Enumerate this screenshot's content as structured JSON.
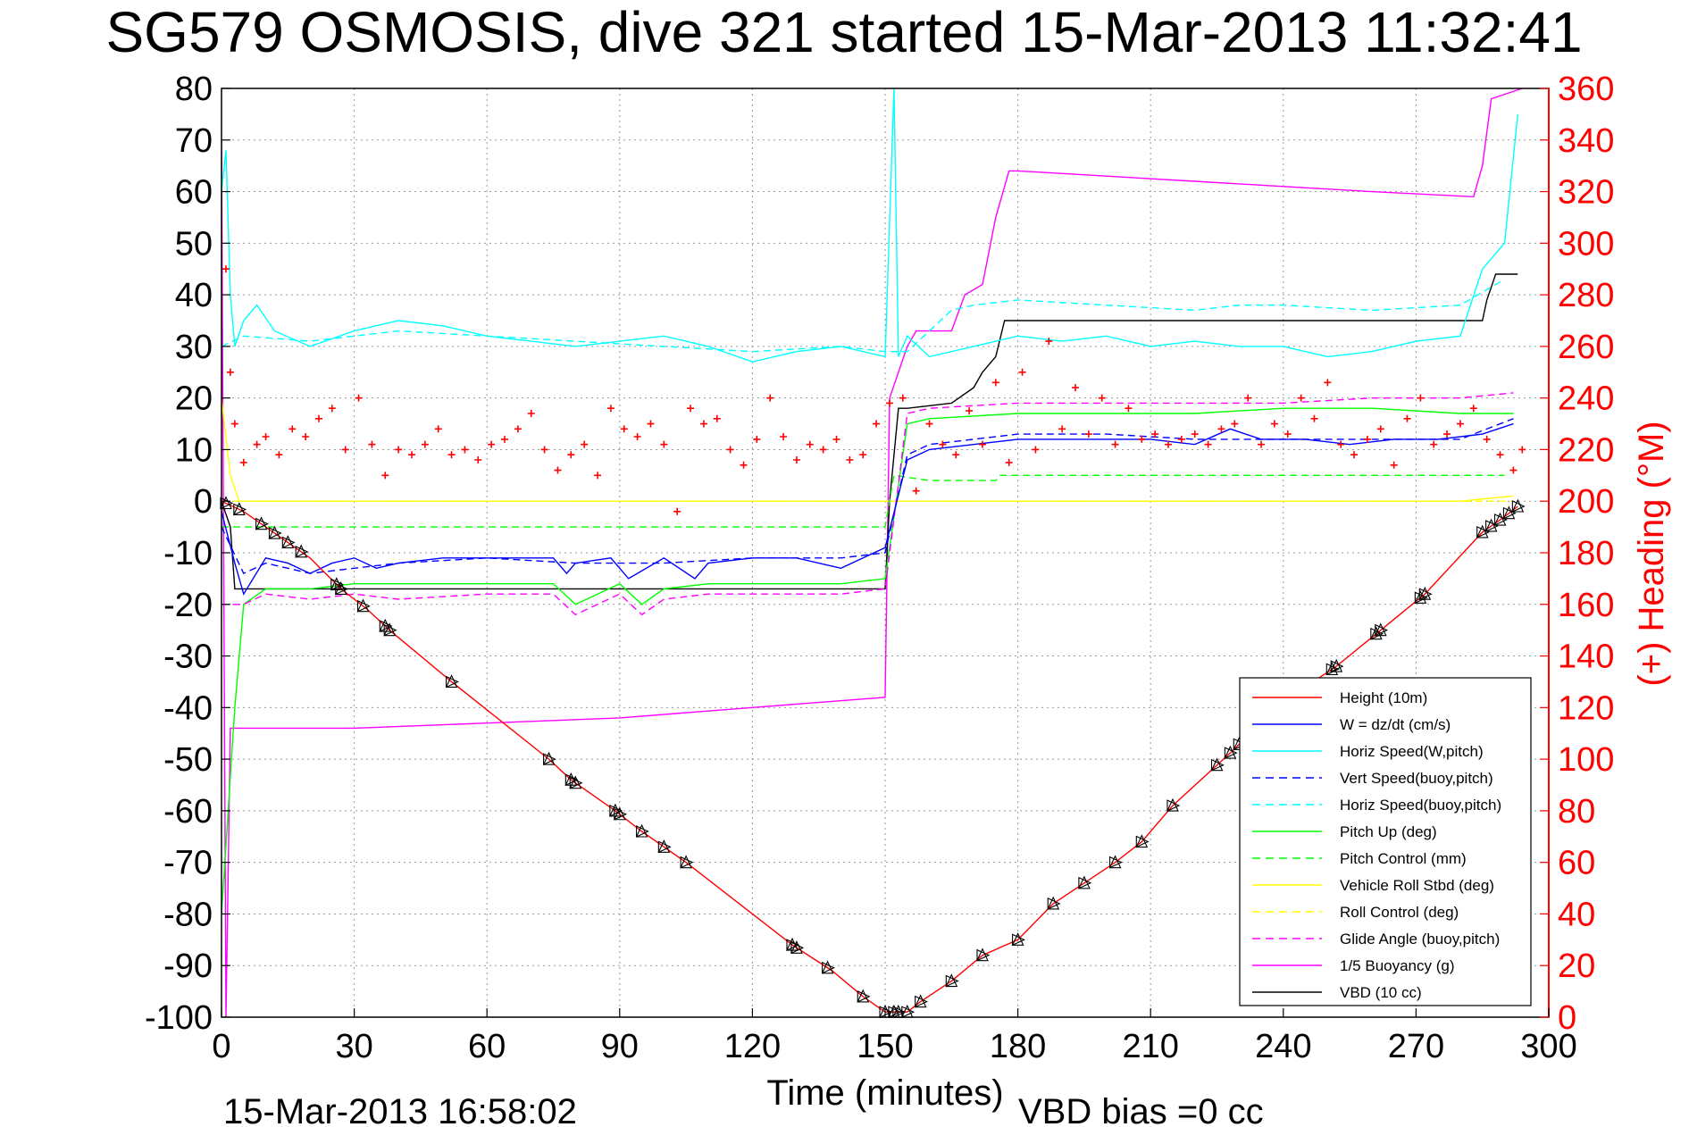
{
  "chart_data": {
    "type": "line",
    "title": "SG579 OSMOSIS, dive 321 started 15-Mar-2013 11:32:41",
    "xlabel": "Time (minutes)",
    "ylabel": "",
    "ylabel_right": "(+) Heading (°M)",
    "xlim": [
      0,
      300
    ],
    "ylim": [
      -100,
      80
    ],
    "ylim_right": [
      0,
      360
    ],
    "x_ticks": [
      "0",
      "30",
      "60",
      "90",
      "120",
      "150",
      "180",
      "210",
      "240",
      "270",
      "300"
    ],
    "y_ticks": [
      "80",
      "70",
      "60",
      "50",
      "40",
      "30",
      "20",
      "10",
      "0",
      "-10",
      "-20",
      "-30",
      "-40",
      "-50",
      "-60",
      "-70",
      "-80",
      "-90",
      "-100"
    ],
    "y_ticks_right": [
      "360",
      "340",
      "320",
      "300",
      "280",
      "260",
      "240",
      "220",
      "200",
      "180",
      "160",
      "140",
      "120",
      "100",
      "80",
      "60",
      "40",
      "20",
      "0"
    ],
    "grid": true,
    "legend_position": "bottom-right",
    "footer_left": "15-Mar-2013 16:58:02",
    "footer_right": "VBD bias =0 cc",
    "series": [
      {
        "name": "Height (10m)",
        "color": "#ff0000",
        "dash": "solid",
        "x": [
          0,
          5,
          10,
          15,
          20,
          27,
          33,
          38,
          52,
          74,
          79,
          89,
          95,
          100,
          105,
          129,
          138,
          145,
          150,
          155,
          158,
          165,
          172,
          180,
          188,
          195,
          202,
          208,
          215,
          229,
          238,
          252,
          262,
          272,
          285,
          290,
          293
        ],
        "y": [
          0,
          -2,
          -5,
          -8,
          -11,
          -17,
          -21,
          -25,
          -35,
          -50,
          -54,
          -60,
          -64,
          -67,
          -70,
          -86,
          -91,
          -96,
          -99,
          -99,
          -97,
          -93,
          -88,
          -85,
          -78,
          -74,
          -70,
          -66,
          -59,
          -48,
          -40,
          -32,
          -25,
          -18,
          -6,
          -3,
          -1
        ]
      },
      {
        "name": "W = dz/dt (cm/s)",
        "color": "#0000ff",
        "dash": "solid",
        "x": [
          0,
          3,
          5,
          10,
          15,
          20,
          25,
          30,
          35,
          40,
          50,
          60,
          75,
          78,
          80,
          88,
          92,
          100,
          107,
          110,
          120,
          130,
          140,
          150,
          155,
          160,
          170,
          180,
          190,
          200,
          210,
          220,
          228,
          235,
          245,
          255,
          265,
          275,
          285,
          292
        ],
        "y": [
          -2,
          -12,
          -18,
          -11,
          -12,
          -14,
          -12,
          -11,
          -13,
          -12,
          -11,
          -11,
          -11,
          -14,
          -12,
          -11,
          -15,
          -11,
          -15,
          -12,
          -11,
          -11,
          -13,
          -9,
          8,
          10,
          11,
          12,
          12,
          12,
          12,
          11,
          14,
          12,
          12,
          11,
          12,
          12,
          13,
          15
        ]
      },
      {
        "name": "Horiz Speed(W,pitch)",
        "color": "#00ffff",
        "dash": "solid",
        "x": [
          0,
          1,
          2,
          3,
          5,
          8,
          12,
          20,
          30,
          40,
          50,
          60,
          70,
          80,
          90,
          100,
          110,
          120,
          130,
          140,
          150,
          152,
          153,
          155,
          160,
          170,
          180,
          190,
          200,
          210,
          220,
          230,
          240,
          250,
          260,
          270,
          280,
          285,
          290,
          293
        ],
        "y": [
          60,
          68,
          40,
          30,
          35,
          38,
          33,
          30,
          33,
          35,
          34,
          32,
          31,
          30,
          31,
          32,
          30,
          27,
          29,
          30,
          28,
          80,
          28,
          32,
          28,
          30,
          32,
          31,
          32,
          30,
          31,
          30,
          30,
          28,
          29,
          31,
          32,
          45,
          50,
          75
        ]
      },
      {
        "name": "Vert Speed(buoy,pitch)",
        "color": "#0000ff",
        "dash": "dashed",
        "x": [
          0,
          5,
          10,
          20,
          30,
          40,
          60,
          80,
          100,
          120,
          140,
          150,
          155,
          160,
          180,
          200,
          220,
          240,
          260,
          280,
          292
        ],
        "y": [
          -5,
          -14,
          -12,
          -14,
          -13,
          -12,
          -11,
          -12,
          -12,
          -11,
          -11,
          -10,
          9,
          11,
          13,
          13,
          12,
          12,
          12,
          12,
          16
        ]
      },
      {
        "name": "Horiz Speed(buoy,pitch)",
        "color": "#00ffff",
        "dash": "dashed",
        "x": [
          0,
          5,
          20,
          40,
          60,
          80,
          100,
          120,
          140,
          150,
          155,
          165,
          170,
          180,
          200,
          220,
          230,
          240,
          260,
          280,
          290
        ],
        "y": [
          30,
          32,
          31,
          33,
          32,
          31,
          30,
          29,
          30,
          29,
          29,
          37,
          38,
          39,
          38,
          37,
          38,
          38,
          37,
          38,
          43
        ]
      },
      {
        "name": "Pitch Up (deg)",
        "color": "#00ff00",
        "dash": "solid",
        "x": [
          0,
          3,
          5,
          10,
          20,
          30,
          40,
          60,
          75,
          80,
          90,
          95,
          100,
          110,
          120,
          140,
          150,
          155,
          160,
          180,
          200,
          220,
          240,
          260,
          280,
          292
        ],
        "y": [
          -80,
          -40,
          -20,
          -17,
          -17,
          -16,
          -16,
          -16,
          -16,
          -20,
          -16,
          -20,
          -17,
          -16,
          -16,
          -16,
          -15,
          15,
          16,
          17,
          17,
          17,
          18,
          18,
          17,
          17
        ]
      },
      {
        "name": "Pitch Control (mm)",
        "color": "#00ff00",
        "dash": "dashed",
        "x": [
          0,
          5,
          10,
          30,
          60,
          90,
          120,
          150,
          152,
          160,
          175,
          176,
          210,
          240,
          270,
          290
        ],
        "y": [
          -5,
          -5,
          -5,
          -5,
          -5,
          -5,
          -5,
          -5,
          5,
          4,
          4,
          5,
          5,
          5,
          5,
          5
        ]
      },
      {
        "name": "Vehicle Roll Stbd (deg)",
        "color": "#ffff00",
        "dash": "solid",
        "x": [
          0,
          2,
          4,
          10,
          20,
          30,
          40,
          60,
          80,
          100,
          120,
          140,
          150,
          160,
          170,
          180,
          200,
          220,
          240,
          260,
          280,
          292
        ],
        "y": [
          20,
          5,
          0,
          0,
          0,
          0,
          0,
          0,
          0,
          0,
          0,
          0,
          0,
          0,
          0,
          0,
          0,
          0,
          0,
          0,
          0,
          1
        ]
      },
      {
        "name": "Roll Control (deg)",
        "color": "#ffff00",
        "dash": "dashed",
        "x": [
          0,
          10,
          50,
          100,
          150,
          160,
          200,
          250,
          292
        ],
        "y": [
          0,
          0,
          0,
          0,
          0,
          0,
          0,
          0,
          0
        ]
      },
      {
        "name": "Glide Angle (buoy,pitch)",
        "color": "#ff00ff",
        "dash": "dashed",
        "x": [
          0,
          5,
          10,
          20,
          30,
          40,
          60,
          75,
          80,
          90,
          95,
          100,
          110,
          120,
          140,
          150,
          155,
          160,
          180,
          200,
          220,
          240,
          260,
          280,
          292
        ],
        "y": [
          -20,
          -20,
          -18,
          -19,
          -18,
          -19,
          -18,
          -18,
          -22,
          -18,
          -22,
          -19,
          -18,
          -18,
          -18,
          -17,
          17,
          18,
          19,
          19,
          19,
          19,
          20,
          20,
          21
        ]
      },
      {
        "name": "1/5 Buoyancy (g)",
        "color": "#ff00ff",
        "dash": "solid",
        "x": [
          0,
          1,
          2,
          3,
          10,
          30,
          60,
          90,
          120,
          150,
          151,
          155,
          157,
          165,
          168,
          172,
          175,
          178,
          180,
          200,
          220,
          240,
          260,
          283,
          285,
          287,
          294
        ],
        "y": [
          70,
          -100,
          -44,
          -44,
          -44,
          -44,
          -43,
          -42,
          -40,
          -38,
          20,
          30,
          33,
          33,
          40,
          42,
          55,
          64,
          64,
          63,
          62,
          61,
          60,
          59,
          65,
          78,
          80
        ]
      },
      {
        "name": "VBD (10 cc)",
        "color": "#000000",
        "dash": "solid",
        "x": [
          0,
          2,
          3,
          10,
          30,
          60,
          90,
          120,
          150,
          151,
          153,
          155,
          165,
          170,
          172,
          175,
          177,
          180,
          200,
          220,
          240,
          260,
          285,
          286,
          288,
          293
        ],
        "y": [
          0,
          -5,
          -17,
          -17,
          -17,
          -17,
          -17,
          -17,
          -17,
          0,
          18,
          18,
          19,
          22,
          25,
          28,
          35,
          35,
          35,
          35,
          35,
          35,
          35,
          39,
          44,
          44
        ]
      }
    ],
    "heading_series": {
      "name": "Heading",
      "color": "#ff0000",
      "axis": "right",
      "x": [
        1,
        2,
        3,
        5,
        8,
        10,
        13,
        16,
        19,
        22,
        25,
        28,
        31,
        34,
        37,
        40,
        43,
        46,
        49,
        52,
        55,
        58,
        61,
        64,
        67,
        70,
        73,
        76,
        79,
        82,
        85,
        88,
        91,
        94,
        97,
        100,
        103,
        106,
        109,
        112,
        115,
        118,
        121,
        124,
        127,
        130,
        133,
        136,
        139,
        142,
        145,
        148,
        151,
        154,
        157,
        160,
        163,
        166,
        169,
        172,
        175,
        178,
        181,
        184,
        187,
        190,
        193,
        196,
        199,
        202,
        205,
        208,
        211,
        214,
        217,
        220,
        223,
        226,
        229,
        232,
        235,
        238,
        241,
        244,
        247,
        250,
        253,
        256,
        259,
        262,
        265,
        268,
        271,
        274,
        277,
        280,
        283,
        286,
        289,
        292,
        294
      ],
      "y": [
        290,
        250,
        230,
        215,
        222,
        225,
        218,
        228,
        225,
        232,
        236,
        220,
        240,
        222,
        210,
        220,
        218,
        222,
        228,
        218,
        220,
        216,
        222,
        224,
        228,
        234,
        220,
        212,
        218,
        222,
        210,
        236,
        228,
        225,
        230,
        222,
        196,
        236,
        230,
        232,
        220,
        214,
        224,
        240,
        225,
        216,
        222,
        220,
        224,
        216,
        218,
        230,
        238,
        240,
        204,
        230,
        222,
        218,
        235,
        222,
        246,
        215,
        250,
        220,
        262,
        228,
        244,
        226,
        240,
        222,
        236,
        224,
        226,
        222,
        224,
        226,
        222,
        228,
        230,
        240,
        222,
        230,
        226,
        240,
        232,
        246,
        222,
        218,
        224,
        228,
        214,
        232,
        240,
        222,
        226,
        230,
        236,
        224,
        218,
        212,
        220
      ]
    },
    "marker_x": [
      1,
      4,
      9,
      12,
      15,
      18,
      26,
      27,
      32,
      37,
      38,
      52,
      74,
      79,
      80,
      89,
      90,
      95,
      100,
      105,
      129,
      130,
      137,
      145,
      150,
      152,
      153,
      155,
      158,
      165,
      172,
      180,
      188,
      195,
      202,
      208,
      215,
      225,
      228,
      230,
      238,
      251,
      252,
      261,
      262,
      271,
      272,
      285,
      287,
      289,
      291,
      293
    ]
  }
}
